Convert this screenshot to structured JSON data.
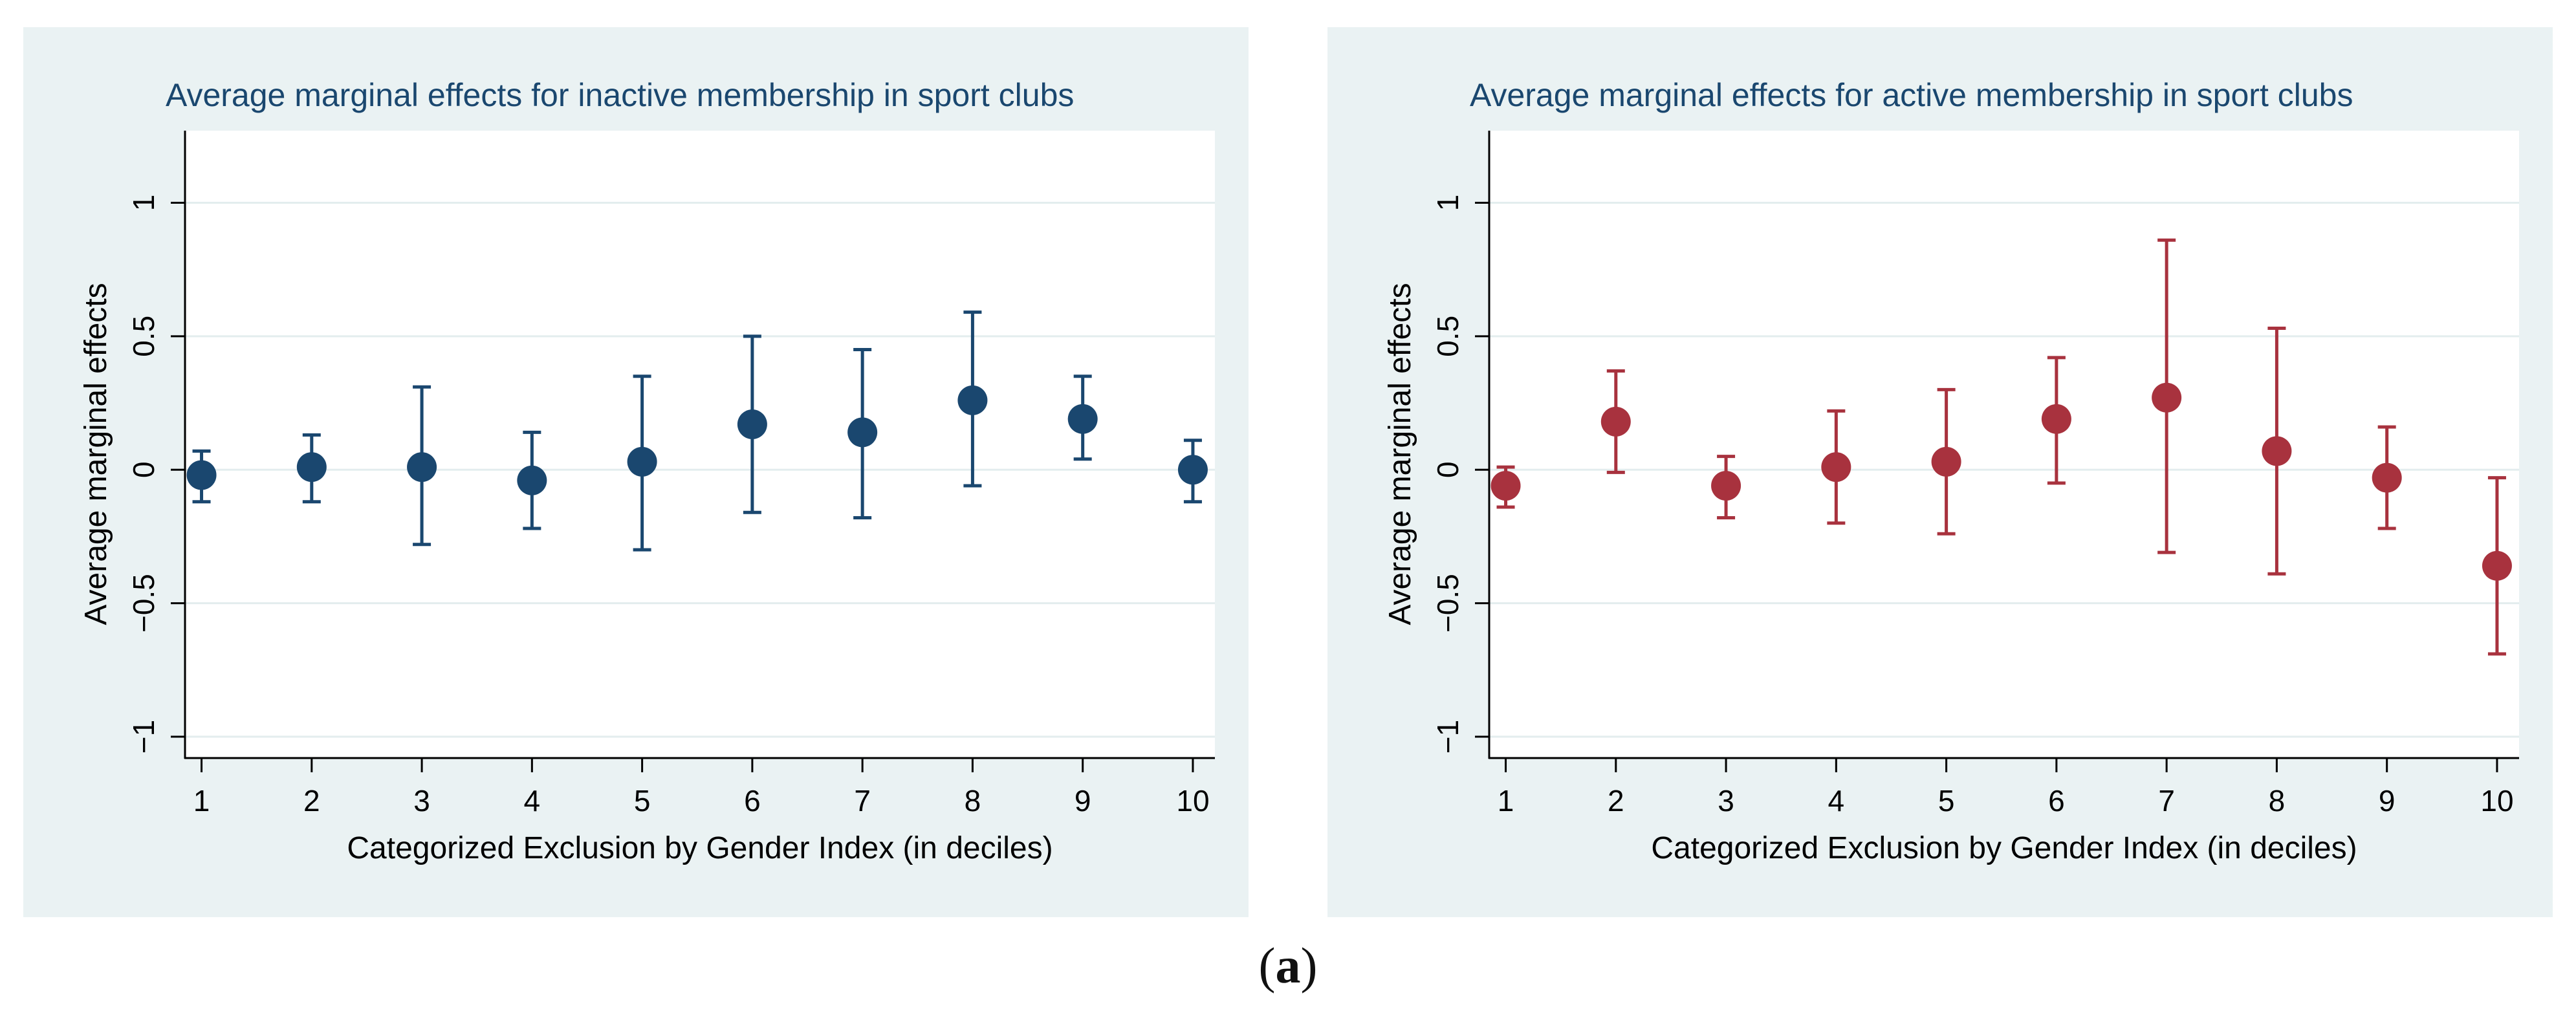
{
  "colors": {
    "panel_background": "#eaf2f3",
    "plot_background": "#ffffff",
    "gridline": "#e3edee",
    "axis": "#000000",
    "title_text": "#1a476f",
    "series_inactive": "#1a476f",
    "series_active": "#a8323e"
  },
  "caption": {
    "open": "(",
    "letter": "a",
    "close": ")"
  },
  "chart_data": [
    {
      "type": "scatter",
      "subtype": "point-with-confidence-interval",
      "title": "Average marginal effects for inactive membership in sport clubs",
      "xlabel": "Categorized Exclusion by Gender Index (in deciles)",
      "ylabel": "Average marginal effects",
      "xlim": [
        0.85,
        10.2
      ],
      "ylim": [
        -1.08,
        1.27
      ],
      "xticks": [
        1,
        2,
        3,
        4,
        5,
        6,
        7,
        8,
        9,
        10
      ],
      "xtick_labels": [
        "1",
        "2",
        "3",
        "4",
        "5",
        "6",
        "7",
        "8",
        "9",
        "10"
      ],
      "yticks": [
        -1,
        -0.5,
        0,
        0.5,
        1
      ],
      "ytick_labels": [
        "−1",
        "−0.5",
        "0",
        "0.5",
        "1"
      ],
      "grid": true,
      "series_color": "#1a476f",
      "points": [
        {
          "x": 1,
          "y": -0.02,
          "lower": -0.12,
          "upper": 0.07
        },
        {
          "x": 2,
          "y": 0.01,
          "lower": -0.12,
          "upper": 0.13
        },
        {
          "x": 3,
          "y": 0.01,
          "lower": -0.28,
          "upper": 0.31
        },
        {
          "x": 4,
          "y": -0.04,
          "lower": -0.22,
          "upper": 0.14
        },
        {
          "x": 5,
          "y": 0.03,
          "lower": -0.3,
          "upper": 0.35
        },
        {
          "x": 6,
          "y": 0.17,
          "lower": -0.16,
          "upper": 0.5
        },
        {
          "x": 7,
          "y": 0.14,
          "lower": -0.18,
          "upper": 0.45
        },
        {
          "x": 8,
          "y": 0.26,
          "lower": -0.06,
          "upper": 0.59
        },
        {
          "x": 9,
          "y": 0.19,
          "lower": 0.04,
          "upper": 0.35
        },
        {
          "x": 10,
          "y": 0.0,
          "lower": -0.12,
          "upper": 0.11
        }
      ]
    },
    {
      "type": "scatter",
      "subtype": "point-with-confidence-interval",
      "title": "Average marginal effects for active membership in sport clubs",
      "xlabel": "Categorized Exclusion by Gender Index (in deciles)",
      "ylabel": "Average marginal effects",
      "xlim": [
        0.85,
        10.2
      ],
      "ylim": [
        -1.08,
        1.27
      ],
      "xticks": [
        1,
        2,
        3,
        4,
        5,
        6,
        7,
        8,
        9,
        10
      ],
      "xtick_labels": [
        "1",
        "2",
        "3",
        "4",
        "5",
        "6",
        "7",
        "8",
        "9",
        "10"
      ],
      "yticks": [
        -1,
        -0.5,
        0,
        0.5,
        1
      ],
      "ytick_labels": [
        "−1",
        "−0.5",
        "0",
        "0.5",
        "1"
      ],
      "grid": true,
      "series_color": "#a8323e",
      "points": [
        {
          "x": 1,
          "y": -0.06,
          "lower": -0.14,
          "upper": 0.01
        },
        {
          "x": 2,
          "y": 0.18,
          "lower": -0.01,
          "upper": 0.37
        },
        {
          "x": 3,
          "y": -0.06,
          "lower": -0.18,
          "upper": 0.05
        },
        {
          "x": 4,
          "y": 0.01,
          "lower": -0.2,
          "upper": 0.22
        },
        {
          "x": 5,
          "y": 0.03,
          "lower": -0.24,
          "upper": 0.3
        },
        {
          "x": 6,
          "y": 0.19,
          "lower": -0.05,
          "upper": 0.42
        },
        {
          "x": 7,
          "y": 0.27,
          "lower": -0.31,
          "upper": 0.86
        },
        {
          "x": 8,
          "y": 0.07,
          "lower": -0.39,
          "upper": 0.53
        },
        {
          "x": 9,
          "y": -0.03,
          "lower": -0.22,
          "upper": 0.16
        },
        {
          "x": 10,
          "y": -0.36,
          "lower": -0.69,
          "upper": -0.03
        }
      ]
    }
  ]
}
